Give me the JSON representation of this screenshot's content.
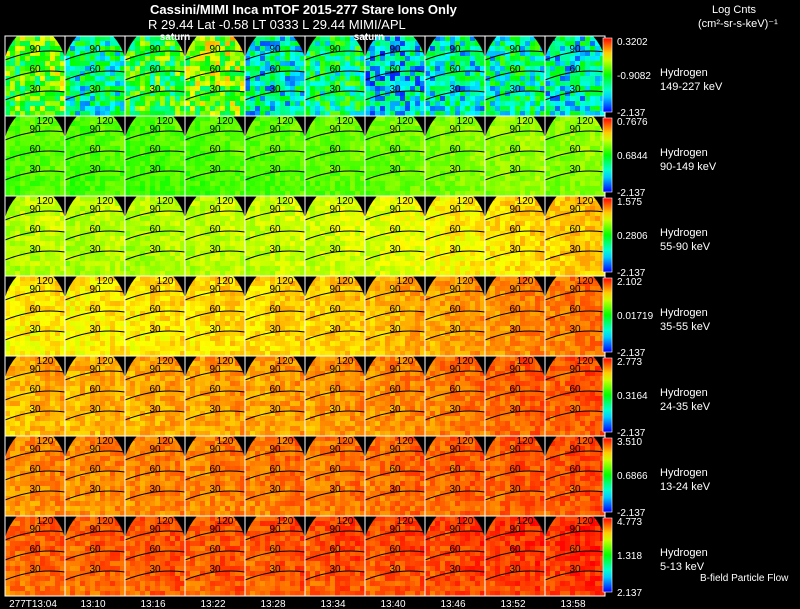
{
  "header": {
    "title": "Cassini/MIMI Inca mTOF  2015-277   Stare   Ions Only",
    "subtitle": "R        29.44 Lat -0.58 LT 0333 L        29.44  MIMI/APL",
    "units_line1": "Log Cnts",
    "units_line2": "(cm²-sr-s-keV)⁻¹"
  },
  "annotations": {
    "saturn_1": "saturn",
    "saturn_2": "saturn",
    "footer": "B-field Particle Flow"
  },
  "colors": {
    "background": "#000000",
    "frame": "#ffffff",
    "contour": "#000000"
  },
  "chart_data": {
    "type": "heatmap",
    "title": "Cassini/MIMI Inca mTOF 2015-277 Stare Ions Only",
    "colormap": "rainbow (blue-cyan-green-yellow-orange-red)",
    "time_labels": [
      "277T13:04",
      "13:10",
      "13:16",
      "13:22",
      "13:28",
      "13:34",
      "13:40",
      "13:46",
      "13:52",
      "13:58"
    ],
    "contour_labels": [
      "120",
      "90",
      "60",
      "30"
    ],
    "rows": [
      {
        "species": "Hydrogen",
        "energy": "149-227 keV",
        "cbar_max": "0.3202",
        "cbar_mid": "-0.9082",
        "cbar_min": "-2.137",
        "levels": [
          0.55,
          0.35,
          0.5,
          0.6,
          0.3,
          0.4,
          0.25,
          0.3,
          0.35,
          0.3
        ]
      },
      {
        "species": "Hydrogen",
        "energy": "90-149 keV",
        "cbar_max": "0.7676",
        "cbar_mid": "0.6844",
        "cbar_min": "-2.137",
        "levels": [
          0.58,
          0.57,
          0.56,
          0.57,
          0.58,
          0.59,
          0.6,
          0.62,
          0.64,
          0.63
        ]
      },
      {
        "species": "Hydrogen",
        "energy": "55-90 keV",
        "cbar_max": "1.575",
        "cbar_mid": "0.2806",
        "cbar_min": "-2.137",
        "levels": [
          0.68,
          0.67,
          0.67,
          0.68,
          0.69,
          0.7,
          0.72,
          0.75,
          0.78,
          0.8
        ]
      },
      {
        "species": "Hydrogen",
        "energy": "35-55 keV",
        "cbar_max": "2.102",
        "cbar_mid": "0.01719",
        "cbar_min": "-2.137",
        "levels": [
          0.76,
          0.76,
          0.77,
          0.78,
          0.79,
          0.8,
          0.82,
          0.84,
          0.86,
          0.88
        ]
      },
      {
        "species": "Hydrogen",
        "energy": "24-35 keV",
        "cbar_max": "2.773",
        "cbar_mid": "0.3164",
        "cbar_min": "-2.137",
        "levels": [
          0.82,
          0.82,
          0.83,
          0.84,
          0.84,
          0.85,
          0.86,
          0.88,
          0.9,
          0.91
        ]
      },
      {
        "species": "Hydrogen",
        "energy": "13-24 keV",
        "cbar_max": "3.510",
        "cbar_mid": "0.6866",
        "cbar_min": "-2.137",
        "levels": [
          0.86,
          0.86,
          0.87,
          0.87,
          0.88,
          0.88,
          0.89,
          0.9,
          0.91,
          0.92
        ]
      },
      {
        "species": "Hydrogen",
        "energy": "5-13 keV",
        "cbar_max": "4.773",
        "cbar_mid": "1.318",
        "cbar_min": "2.137",
        "levels": [
          0.9,
          0.9,
          0.91,
          0.91,
          0.91,
          0.92,
          0.92,
          0.93,
          0.94,
          0.95
        ]
      }
    ]
  }
}
